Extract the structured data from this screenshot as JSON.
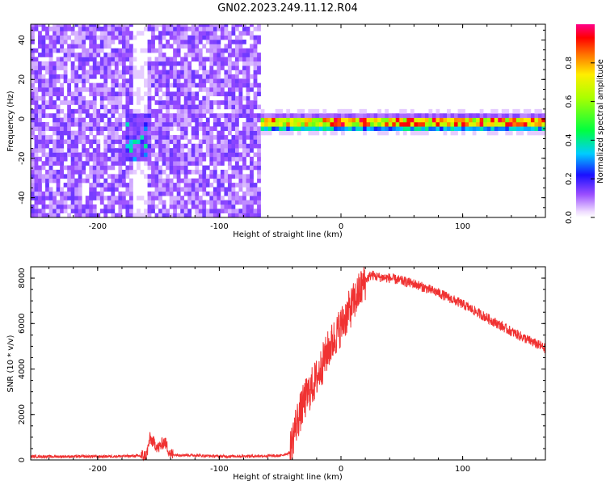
{
  "title": "GN02.2023.249.11.12.R04",
  "chart_data": [
    {
      "type": "heatmap",
      "xlabel": "Height of straight line (km)",
      "ylabel": "Frequency (Hz)",
      "xlim": [
        -255,
        168
      ],
      "ylim": [
        -50,
        48
      ],
      "xticks": [
        -200,
        -100,
        0,
        100
      ],
      "yticks": [
        -40,
        -20,
        0,
        20,
        40
      ],
      "colorbar": {
        "label": "Normalized spectral amplitude",
        "range": [
          0,
          1
        ],
        "ticks": [
          0.0,
          0.2,
          0.4,
          0.6,
          0.8
        ],
        "colormap": "rainbow (white-violet-blue-cyan-green-yellow-red-magenta)"
      },
      "regions": [
        {
          "name": "noise field",
          "x_range": [
            -255,
            -66
          ],
          "freq_range": [
            -50,
            48
          ],
          "amplitude": 0.1
        },
        {
          "name": "gap",
          "x_range": [
            -172,
            -160
          ],
          "freq_range": [
            -50,
            48
          ],
          "amplitude": 0.02
        },
        {
          "name": "blob",
          "x_range": [
            -178,
            -156
          ],
          "freq_range": [
            -22,
            2
          ],
          "amplitude": 0.35
        },
        {
          "name": "carrier band",
          "x_range": [
            -66,
            168
          ],
          "freq_center": -2,
          "freq_halfwidth": 4,
          "amplitude": 0.95
        }
      ]
    },
    {
      "type": "line",
      "xlabel": "Height of straight line (km)",
      "ylabel": "SNR (10 * v/v)",
      "xlim": [
        -255,
        168
      ],
      "ylim": [
        0,
        8500
      ],
      "xticks": [
        -200,
        -100,
        0,
        100
      ],
      "yticks": [
        0,
        2000,
        4000,
        6000,
        8000
      ],
      "color": "#f03232",
      "x": [
        -255,
        -200,
        -160,
        -157,
        -150,
        -145,
        -140,
        -100,
        -50,
        -42,
        -38,
        -30,
        -20,
        -10,
        0,
        10,
        20,
        25,
        30,
        40,
        60,
        80,
        100,
        120,
        140,
        168
      ],
      "values": [
        150,
        150,
        180,
        950,
        520,
        820,
        240,
        160,
        180,
        320,
        1400,
        2600,
        3600,
        4900,
        5900,
        6900,
        7900,
        8150,
        8050,
        8000,
        7750,
        7350,
        6850,
        6250,
        5650,
        4900
      ]
    }
  ]
}
